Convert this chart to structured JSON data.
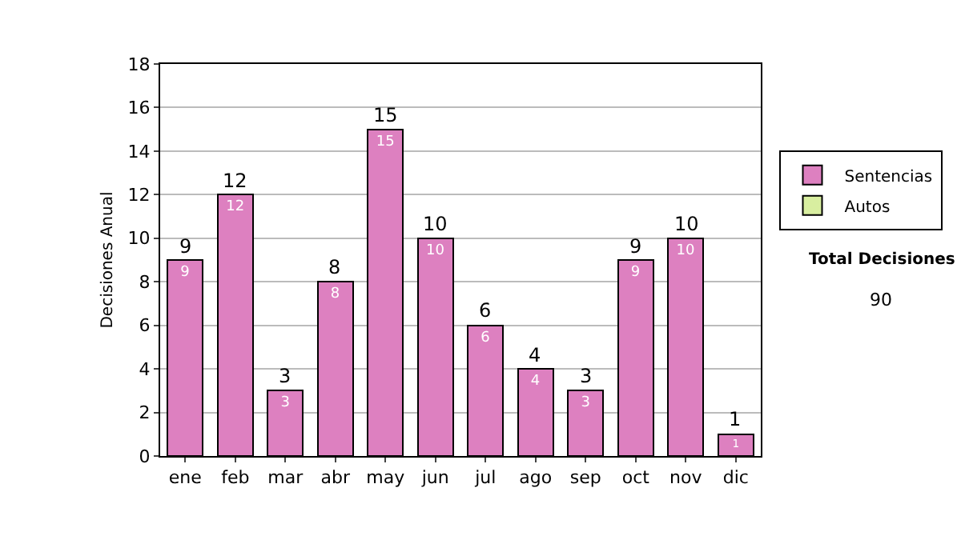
{
  "chart_data": {
    "type": "bar",
    "ylabel": "Decisiones Anual",
    "categories": [
      "ene",
      "feb",
      "mar",
      "abr",
      "may",
      "jun",
      "jul",
      "ago",
      "sep",
      "oct",
      "nov",
      "dic"
    ],
    "series": [
      {
        "name": "Sentencias",
        "color": "#dd80c0",
        "values": [
          9,
          12,
          3,
          8,
          15,
          10,
          6,
          4,
          3,
          9,
          10,
          1
        ],
        "value_labels": [
          "9",
          "12",
          "3",
          "8",
          "15",
          "10",
          "6",
          "4",
          "3",
          "9",
          "10",
          "1"
        ]
      },
      {
        "name": "Autos",
        "color": "#d8eea0",
        "values": [
          null,
          null,
          null,
          null,
          null,
          null,
          null,
          null,
          null,
          null,
          null,
          null
        ]
      }
    ],
    "stacked": true,
    "totals": [
      "9",
      "12",
      "3",
      "8",
      "15",
      "10",
      "6",
      "4",
      "3",
      "9",
      "10",
      "1"
    ],
    "ylim": [
      0,
      18
    ],
    "yticks": [
      0,
      2,
      4,
      6,
      8,
      10,
      12,
      14,
      16,
      18
    ],
    "grid": "y",
    "legend": "right",
    "annotations": [
      "Total Decisiones",
      "90"
    ]
  }
}
